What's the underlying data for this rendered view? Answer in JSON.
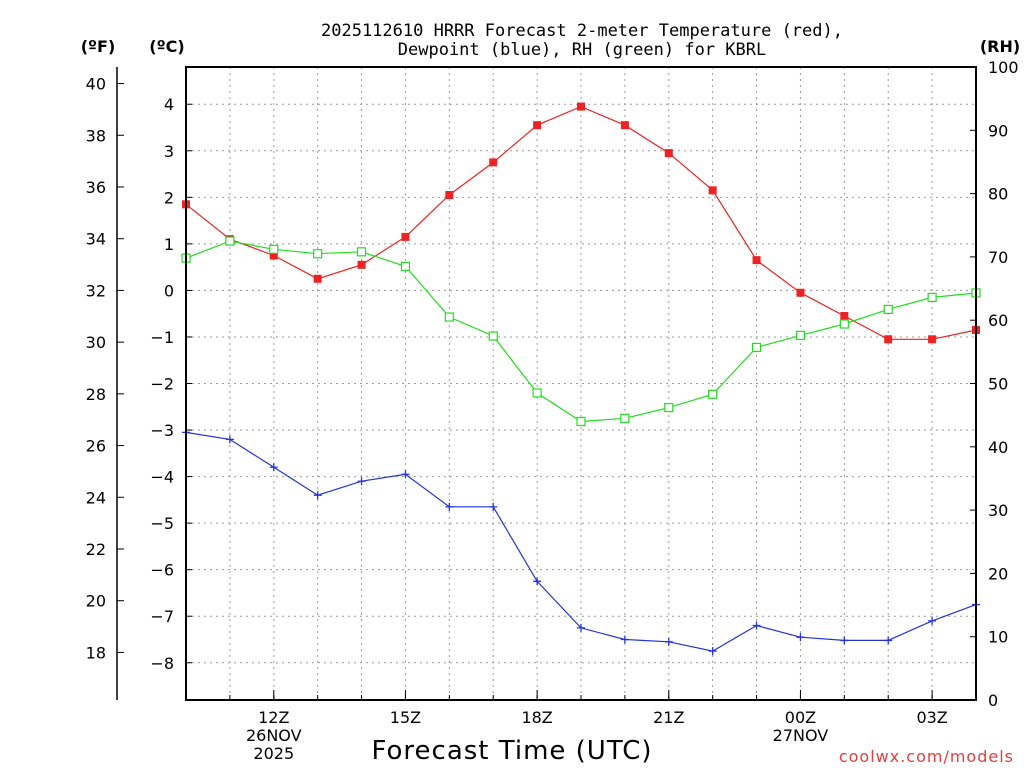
{
  "chart_data": {
    "type": "line",
    "title_line1": "2025112610 HRRR Forecast 2-meter Temperature (red),",
    "title_line2": "Dewpoint (blue), RH (green) for KBRL",
    "xlabel": "Forecast Time (UTC)",
    "units": {
      "fahrenheit": "(ºF)",
      "celsius": "(ºC)",
      "rh": "(RH)"
    },
    "x_hours": [
      10,
      11,
      12,
      13,
      14,
      15,
      16,
      17,
      18,
      19,
      20,
      21,
      22,
      23,
      24,
      25,
      26,
      27,
      28
    ],
    "xlim": [
      10,
      28
    ],
    "x_ticks": [
      {
        "hour": 12,
        "label": "12Z",
        "sub1": "26NOV",
        "sub2": "2025"
      },
      {
        "hour": 15,
        "label": "15Z",
        "sub1": "",
        "sub2": ""
      },
      {
        "hour": 18,
        "label": "18Z",
        "sub1": "",
        "sub2": ""
      },
      {
        "hour": 21,
        "label": "21Z",
        "sub1": "",
        "sub2": ""
      },
      {
        "hour": 24,
        "label": "00Z",
        "sub1": "27NOV",
        "sub2": ""
      },
      {
        "hour": 27,
        "label": "03Z",
        "sub1": "",
        "sub2": ""
      }
    ],
    "celsius_axis": {
      "ylim": [
        -8.8,
        4.8
      ],
      "ticks": [
        4,
        3,
        2,
        1,
        0,
        -1,
        -2,
        -3,
        -4,
        -5,
        -6,
        -7,
        -8
      ],
      "labels": [
        "4",
        "3",
        "2",
        "1",
        "0",
        "−1",
        "−2",
        "−3",
        "−4",
        "−5",
        "−6",
        "−7",
        "−8"
      ]
    },
    "fahrenheit_axis": {
      "ticks": [
        40,
        38,
        36,
        34,
        32,
        30,
        28,
        26,
        24,
        22,
        20,
        18
      ]
    },
    "rh_axis": {
      "ylim": [
        0,
        100
      ],
      "ticks": [
        100,
        90,
        80,
        70,
        60,
        50,
        40,
        30,
        20,
        10,
        0
      ]
    },
    "series": [
      {
        "name": "Temperature",
        "unit": "C",
        "color": "#ee2222",
        "marker": "filled-square",
        "values": [
          1.85,
          1.1,
          0.75,
          0.25,
          0.55,
          1.15,
          2.05,
          2.75,
          3.55,
          3.95,
          3.55,
          2.95,
          2.15,
          0.65,
          -0.05,
          -0.55,
          -1.05,
          -1.05,
          -0.85
        ]
      },
      {
        "name": "Dewpoint",
        "unit": "C",
        "color": "#2233dd",
        "marker": "plus",
        "values": [
          -3.05,
          -3.2,
          -3.8,
          -4.4,
          -4.1,
          -3.95,
          -4.65,
          -4.65,
          -6.25,
          -7.25,
          -7.5,
          -7.55,
          -7.75,
          -7.2,
          -7.45,
          -7.52,
          -7.52,
          -7.1,
          -6.75
        ]
      },
      {
        "name": "RH",
        "unit": "%",
        "color": "#22dd22",
        "marker": "open-square",
        "values": [
          69.8,
          72.5,
          71.2,
          70.5,
          70.8,
          68.5,
          60.5,
          57.5,
          48.5,
          44.0,
          44.5,
          46.2,
          48.3,
          55.7,
          57.6,
          59.4,
          61.7,
          63.6,
          64.3
        ]
      }
    ],
    "grid": true,
    "credit": "coolwx.com/models",
    "credit_color": "#e04040"
  }
}
